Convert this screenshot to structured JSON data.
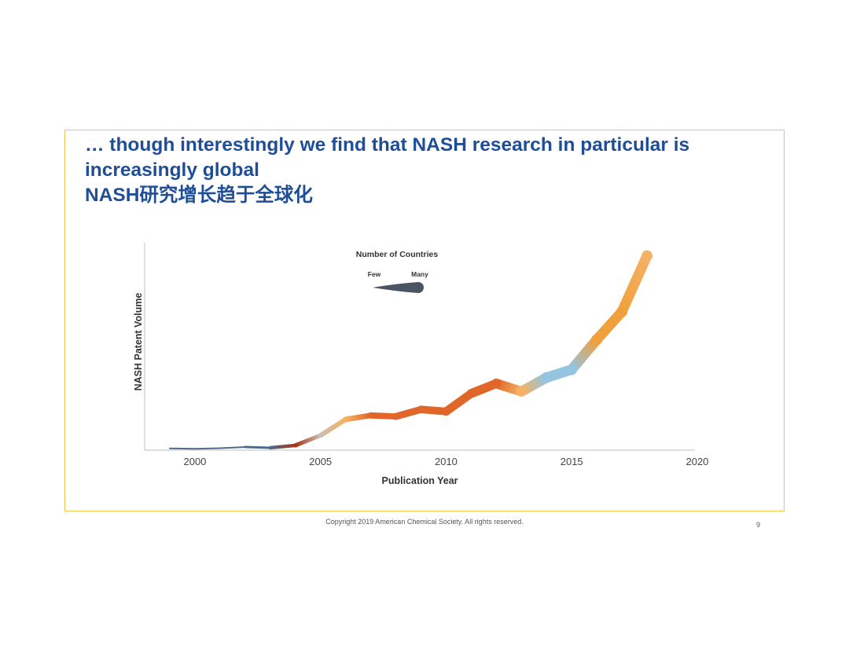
{
  "slide": {
    "title_line1": "… though interestingly we find that NASH research in particular is",
    "title_line2": "increasingly global",
    "title_line3": "NASH研究增长趋于全球化",
    "footer": "Copyright 2019 American Chemical Society. All rights reserved.",
    "page_number": "9"
  },
  "colors": {
    "title": "#1f4e99",
    "frame": "#f3c54a",
    "few_countries": "#4e6a8a",
    "many_countries": "#f0a03c",
    "dark_red": "#a8351a",
    "orange_red": "#e0662a",
    "light_blue": "#94c4e0",
    "light_orange": "#f5b265",
    "legend_shape": "#4a5563"
  },
  "legend": {
    "title": "Number of Countries",
    "few_label": "Few",
    "many_label": "Many"
  },
  "chart_data": {
    "type": "line",
    "title": "",
    "xlabel": "Publication Year",
    "ylabel": "NASH Patent Volume",
    "xlim": [
      1998,
      2020
    ],
    "ylim": [
      0,
      100
    ],
    "xticks": [
      "2000",
      "2005",
      "2010",
      "2015",
      "2020"
    ],
    "grid": false,
    "legend": "top-center",
    "series": [
      {
        "x": [
          1999,
          2000,
          2001,
          2002,
          2003,
          2004,
          2005,
          2006,
          2007,
          2008,
          2009,
          2010,
          2011,
          2012,
          2013,
          2014,
          2015,
          2016,
          2017,
          2018
        ],
        "y": [
          0.5,
          0.3,
          0.6,
          1.2,
          0.8,
          2,
          7,
          15,
          17,
          16.5,
          20,
          19,
          28,
          33,
          29,
          36,
          40,
          55,
          69,
          97
        ],
        "countries_level": [
          "few",
          "few",
          "few",
          "few",
          "few",
          "dark_red",
          "light_gray",
          "light_orange",
          "orange_red",
          "orange_red",
          "orange_red",
          "orange_red",
          "orange_red",
          "orange_red",
          "light_orange",
          "light_blue",
          "light_blue",
          "orange",
          "orange",
          "light_orange"
        ]
      }
    ]
  }
}
